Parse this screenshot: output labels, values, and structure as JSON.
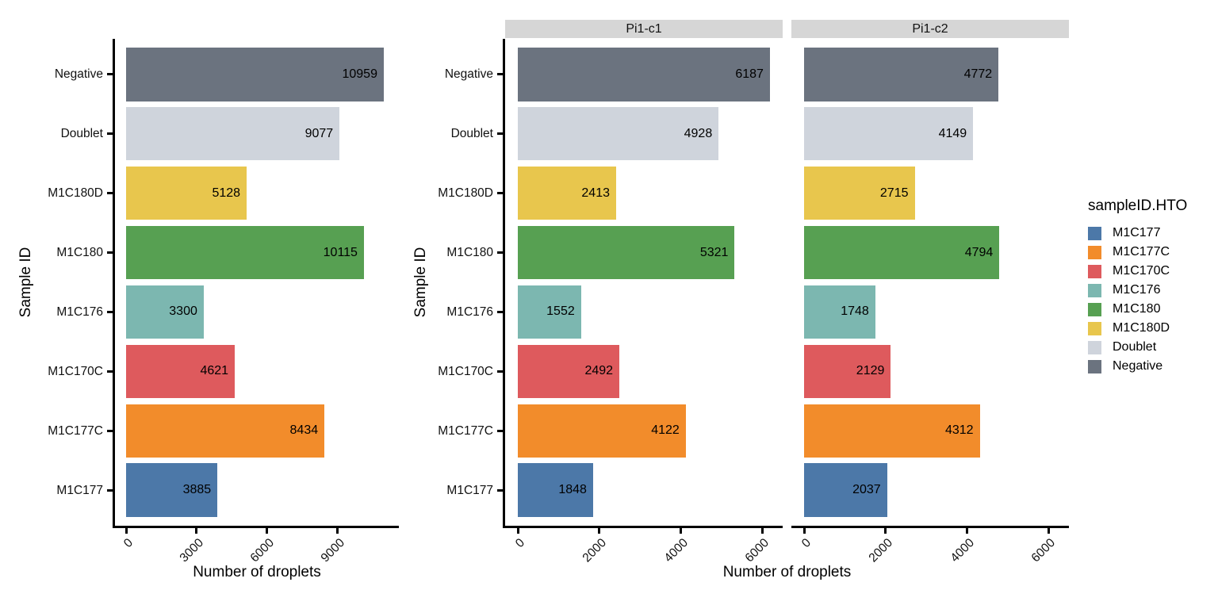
{
  "chart_data": {
    "type": "bar",
    "orientation": "horizontal",
    "xlabel": "Number of droplets",
    "ylabel": "Sample ID",
    "categories_top_to_bottom": [
      "Negative",
      "Doublet",
      "M1C180D",
      "M1C180",
      "M1C176",
      "M1C170C",
      "M1C177C",
      "M1C177"
    ],
    "panels": [
      {
        "strip": "",
        "x_ticks": [
          0,
          3000,
          6000,
          9000
        ],
        "xlim": [
          0,
          11600
        ],
        "values": [
          10959,
          9077,
          5128,
          10115,
          3300,
          4621,
          8434,
          3885
        ]
      },
      {
        "strip": "Pi1-c1",
        "x_ticks": [
          0,
          2000,
          4000,
          6000
        ],
        "xlim": [
          0,
          6500
        ],
        "values": [
          6187,
          4928,
          2413,
          5321,
          1552,
          2492,
          4122,
          1848
        ]
      },
      {
        "strip": "Pi1-c2",
        "x_ticks": [
          0,
          2000,
          4000,
          6000
        ],
        "xlim": [
          0,
          6500
        ],
        "values": [
          4772,
          4149,
          2715,
          4794,
          1748,
          2129,
          4312,
          2037
        ]
      }
    ],
    "colors": {
      "Negative": "#6B737F",
      "Doublet": "#CFD4DC",
      "M1C180D": "#E8C64D",
      "M1C180": "#57A052",
      "M1C176": "#7CB7B0",
      "M1C170C": "#DE5A5D",
      "M1C177C": "#F28C2B",
      "M1C177": "#4C78A8"
    },
    "strip_bg": "#D6D6D6",
    "legend": {
      "title": "sampleID.HTO",
      "items": [
        "M1C177",
        "M1C177C",
        "M1C170C",
        "M1C176",
        "M1C180",
        "M1C180D",
        "Doublet",
        "Negative"
      ]
    }
  }
}
